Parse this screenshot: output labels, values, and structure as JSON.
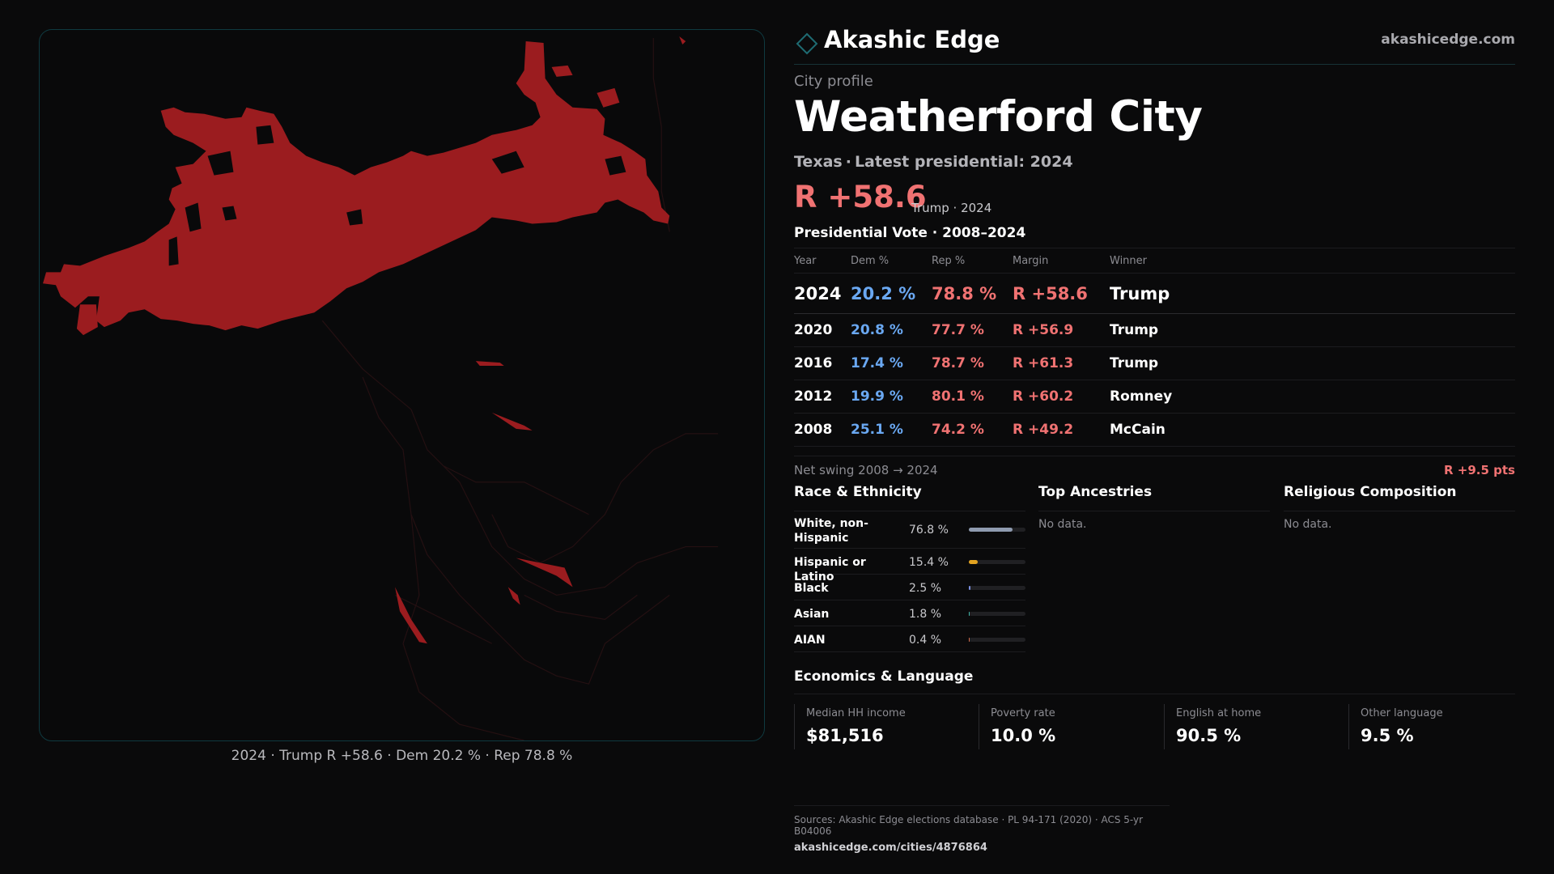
{
  "brand": {
    "name": "Akashic Edge",
    "url": "akashicedge.com",
    "accent": "#1e6b72"
  },
  "profile": {
    "eyebrow": "City profile",
    "city": "Weatherford City",
    "state": "Texas",
    "latest_label": "Latest presidential: 2024",
    "headline_margin": "R +58.6",
    "headline_meta": "Trump · 2024"
  },
  "map": {
    "caption": "2024 · Trump R +58.6 · Dem 20.2 % · Rep 78.8 %",
    "fill_color": "#9b1c1f",
    "outline_color": "#2a1214"
  },
  "vote": {
    "title": "Presidential Vote · 2008–2024",
    "headers": {
      "year": "Year",
      "dem": "Dem %",
      "rep": "Rep %",
      "margin": "Margin",
      "winner": "Winner"
    },
    "rows": [
      {
        "year": "2024",
        "dem": "20.2 %",
        "rep": "78.8 %",
        "margin": "R +58.6",
        "winner": "Trump"
      },
      {
        "year": "2020",
        "dem": "20.8 %",
        "rep": "77.7 %",
        "margin": "R +56.9",
        "winner": "Trump"
      },
      {
        "year": "2016",
        "dem": "17.4 %",
        "rep": "78.7 %",
        "margin": "R +61.3",
        "winner": "Trump"
      },
      {
        "year": "2012",
        "dem": "19.9 %",
        "rep": "80.1 %",
        "margin": "R +60.2",
        "winner": "Romney"
      },
      {
        "year": "2008",
        "dem": "25.1 %",
        "rep": "74.2 %",
        "margin": "R +49.2",
        "winner": "McCain"
      }
    ],
    "swing_label": "Net swing 2008 → 2024",
    "swing_value": "R +9.5 pts"
  },
  "race": {
    "title": "Race & Ethnicity",
    "rows": [
      {
        "label": "White, non-Hispanic",
        "value": "76.8 %",
        "share": 0.768,
        "color": "#8f9bb0"
      },
      {
        "label": "Hispanic or Latino",
        "value": "15.4 %",
        "share": 0.154,
        "color": "#e3a321"
      },
      {
        "label": "Black",
        "value": "2.5 %",
        "share": 0.025,
        "color": "#7b8fe0"
      },
      {
        "label": "Asian",
        "value": "1.8 %",
        "share": 0.018,
        "color": "#3fb3a6"
      },
      {
        "label": "AIAN",
        "value": "0.4 %",
        "share": 0.004,
        "color": "#d06a4a"
      }
    ]
  },
  "ancestries": {
    "title": "Top Ancestries",
    "empty": "No data."
  },
  "religion": {
    "title": "Religious Composition",
    "empty": "No data."
  },
  "economics": {
    "title": "Economics & Language",
    "cells": [
      {
        "label": "Median HH income",
        "value": "$81,516"
      },
      {
        "label": "Poverty rate",
        "value": "10.0 %"
      },
      {
        "label": "English at home",
        "value": "90.5 %"
      },
      {
        "label": "Other language",
        "value": "9.5 %"
      }
    ]
  },
  "sources": {
    "line": "Sources: Akashic Edge elections database · PL 94-171 (2020) · ACS 5-yr B04006",
    "url": "akashicedge.com/cities/4876864"
  }
}
